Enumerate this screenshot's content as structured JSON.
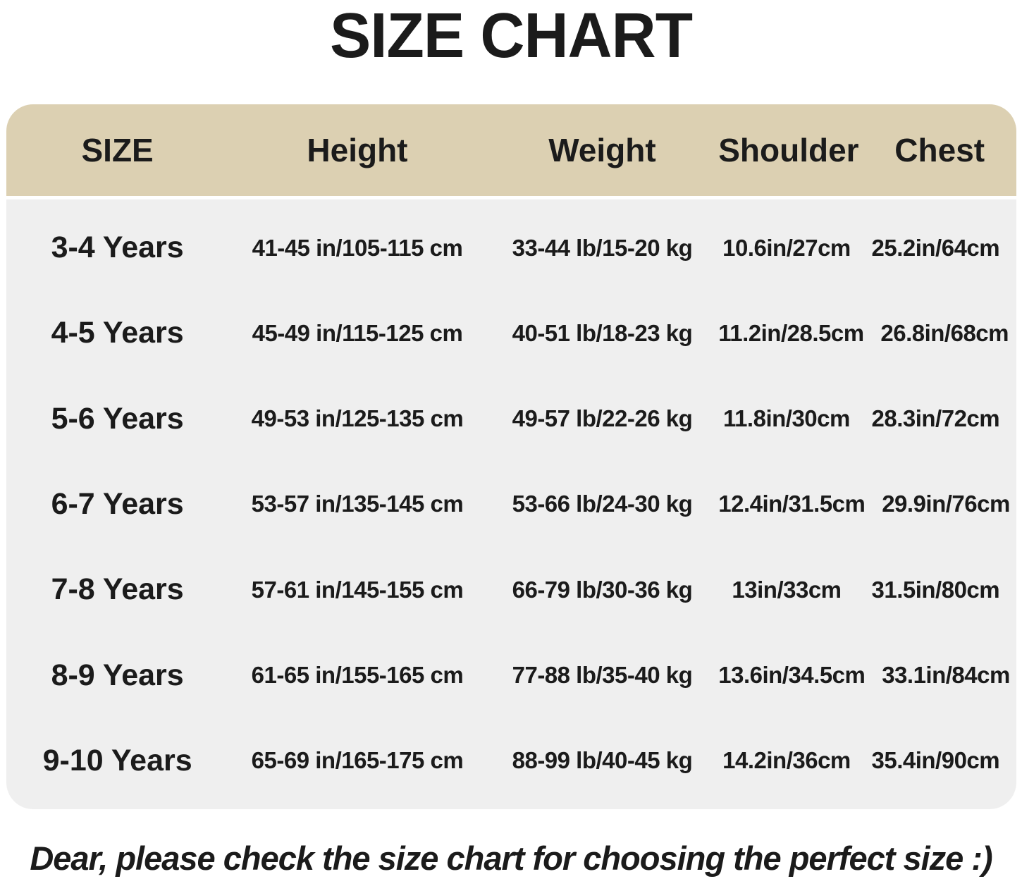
{
  "title": "SIZE CHART",
  "footer_note": "Dear, please check the size chart for choosing the perfect size :)",
  "colors": {
    "header_bg": "#dcd0b2",
    "body_bg": "#efefef",
    "text": "#1b1b1b"
  },
  "table": {
    "columns": [
      "SIZE",
      "Height",
      "Weight",
      "Shoulder",
      "Chest"
    ],
    "rows": [
      {
        "size": "3-4 Years",
        "height": "41-45 in/105-115 cm",
        "weight": "33-44 lb/15-20 kg",
        "shoulder": "10.6in/27cm",
        "chest": "25.2in/64cm"
      },
      {
        "size": "4-5 Years",
        "height": "45-49 in/115-125 cm",
        "weight": "40-51 lb/18-23 kg",
        "shoulder": "11.2in/28.5cm",
        "chest": "26.8in/68cm"
      },
      {
        "size": "5-6 Years",
        "height": "49-53 in/125-135 cm",
        "weight": "49-57 lb/22-26 kg",
        "shoulder": "11.8in/30cm",
        "chest": "28.3in/72cm"
      },
      {
        "size": "6-7 Years",
        "height": "53-57 in/135-145 cm",
        "weight": "53-66 lb/24-30 kg",
        "shoulder": "12.4in/31.5cm",
        "chest": "29.9in/76cm"
      },
      {
        "size": "7-8 Years",
        "height": "57-61 in/145-155 cm",
        "weight": "66-79 lb/30-36 kg",
        "shoulder": "13in/33cm",
        "chest": "31.5in/80cm"
      },
      {
        "size": "8-9 Years",
        "height": "61-65 in/155-165 cm",
        "weight": "77-88 lb/35-40 kg",
        "shoulder": "13.6in/34.5cm",
        "chest": "33.1in/84cm"
      },
      {
        "size": "9-10 Years",
        "height": "65-69 in/165-175 cm",
        "weight": "88-99 lb/40-45 kg",
        "shoulder": "14.2in/36cm",
        "chest": "35.4in/90cm"
      }
    ]
  },
  "chart_data": {
    "type": "table",
    "title": "SIZE CHART",
    "columns": [
      "SIZE",
      "Height",
      "Weight",
      "Shoulder",
      "Chest"
    ],
    "rows": [
      [
        "3-4 Years",
        "41-45 in/105-115 cm",
        "33-44 lb/15-20 kg",
        "10.6in/27cm",
        "25.2in/64cm"
      ],
      [
        "4-5 Years",
        "45-49 in/115-125 cm",
        "40-51 lb/18-23 kg",
        "11.2in/28.5cm",
        "26.8in/68cm"
      ],
      [
        "5-6 Years",
        "49-53 in/125-135 cm",
        "49-57 lb/22-26 kg",
        "11.8in/30cm",
        "28.3in/72cm"
      ],
      [
        "6-7 Years",
        "53-57 in/135-145 cm",
        "53-66 lb/24-30 kg",
        "12.4in/31.5cm",
        "29.9in/76cm"
      ],
      [
        "7-8 Years",
        "57-61 in/145-155 cm",
        "66-79 lb/30-36 kg",
        "13in/33cm",
        "31.5in/80cm"
      ],
      [
        "8-9 Years",
        "61-65 in/155-165 cm",
        "77-88 lb/35-40 kg",
        "13.6in/34.5cm",
        "33.1in/84cm"
      ],
      [
        "9-10 Years",
        "65-69 in/165-175 cm",
        "88-99 lb/40-45 kg",
        "14.2in/36cm",
        "35.4in/90cm"
      ]
    ],
    "annotation": "Dear, please check the size chart for choosing the perfect size :)"
  }
}
